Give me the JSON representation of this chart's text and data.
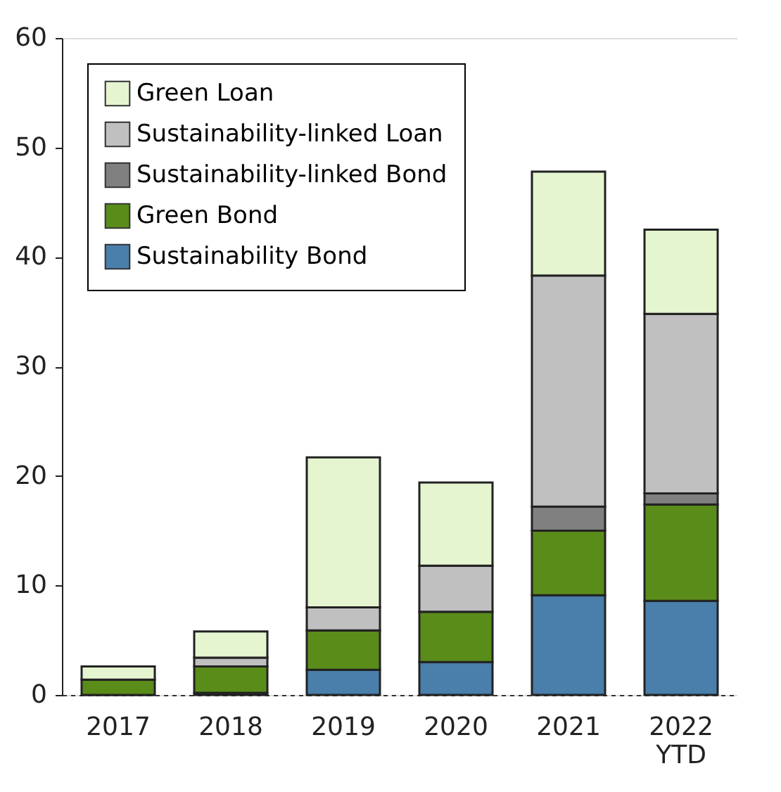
{
  "chart_data": {
    "type": "bar",
    "stacked": true,
    "categories": [
      "2017",
      "2018",
      "2019",
      "2020",
      "2021",
      "2022\nYTD"
    ],
    "series": [
      {
        "name": "Sustainability Bond",
        "color": "#4a7eab",
        "values": [
          0,
          0.2,
          2.3,
          3.0,
          9.1,
          8.6
        ]
      },
      {
        "name": "Green Bond",
        "color": "#5a8c1a",
        "values": [
          1.4,
          2.4,
          3.6,
          4.6,
          5.9,
          8.8
        ]
      },
      {
        "name": "Sustainability-linked Bond",
        "color": "#808080",
        "values": [
          0,
          0,
          0,
          0,
          2.2,
          1.0
        ]
      },
      {
        "name": "Sustainability-linked Loan",
        "color": "#c0c0c0",
        "values": [
          0,
          0.8,
          2.1,
          4.2,
          21.1,
          16.4
        ]
      },
      {
        "name": "Green Loan",
        "color": "#e4f5d0",
        "values": [
          1.2,
          2.4,
          13.7,
          7.6,
          9.5,
          7.7
        ]
      }
    ],
    "ylim": [
      0,
      60
    ],
    "yticks": [
      0,
      10,
      20,
      30,
      40,
      50,
      60
    ],
    "grid": false,
    "legend": "top left"
  }
}
